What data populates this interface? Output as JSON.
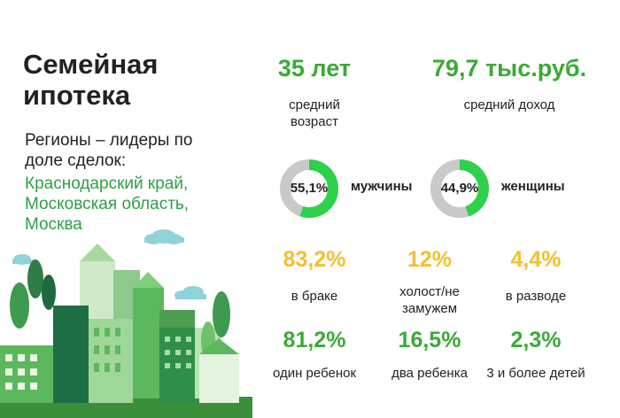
{
  "title": "Семейная ипотека",
  "subtitle": "Регионы – лидеры по доле сделок:",
  "regions": "Краснодарский край, Московская область, Москва",
  "age": {
    "value": "35 лет",
    "label": "средний возраст"
  },
  "income": {
    "value": "79,7 тыс.руб.",
    "label": "средний доход"
  },
  "gender": {
    "men": {
      "percent": "55,1%",
      "label": "мужчины",
      "fraction": 0.551
    },
    "women": {
      "percent": "44,9%",
      "label": "женщины",
      "fraction": 0.449
    }
  },
  "marital": [
    {
      "value": "83,2%",
      "label": "в браке"
    },
    {
      "value": "12%",
      "label": "холост/не замужем"
    },
    {
      "value": "4,4%",
      "label": "в разводе"
    }
  ],
  "children": [
    {
      "value": "81,2%",
      "label": "один ребенок"
    },
    {
      "value": "16,5%",
      "label": "два ребенка"
    },
    {
      "value": "2,3%",
      "label": "3 и более детей"
    }
  ],
  "colors": {
    "green": "#3aaa35",
    "yellow": "#f5bf2d",
    "donut_track": "#c9c9c9",
    "donut_fill": "#2fd14a"
  }
}
